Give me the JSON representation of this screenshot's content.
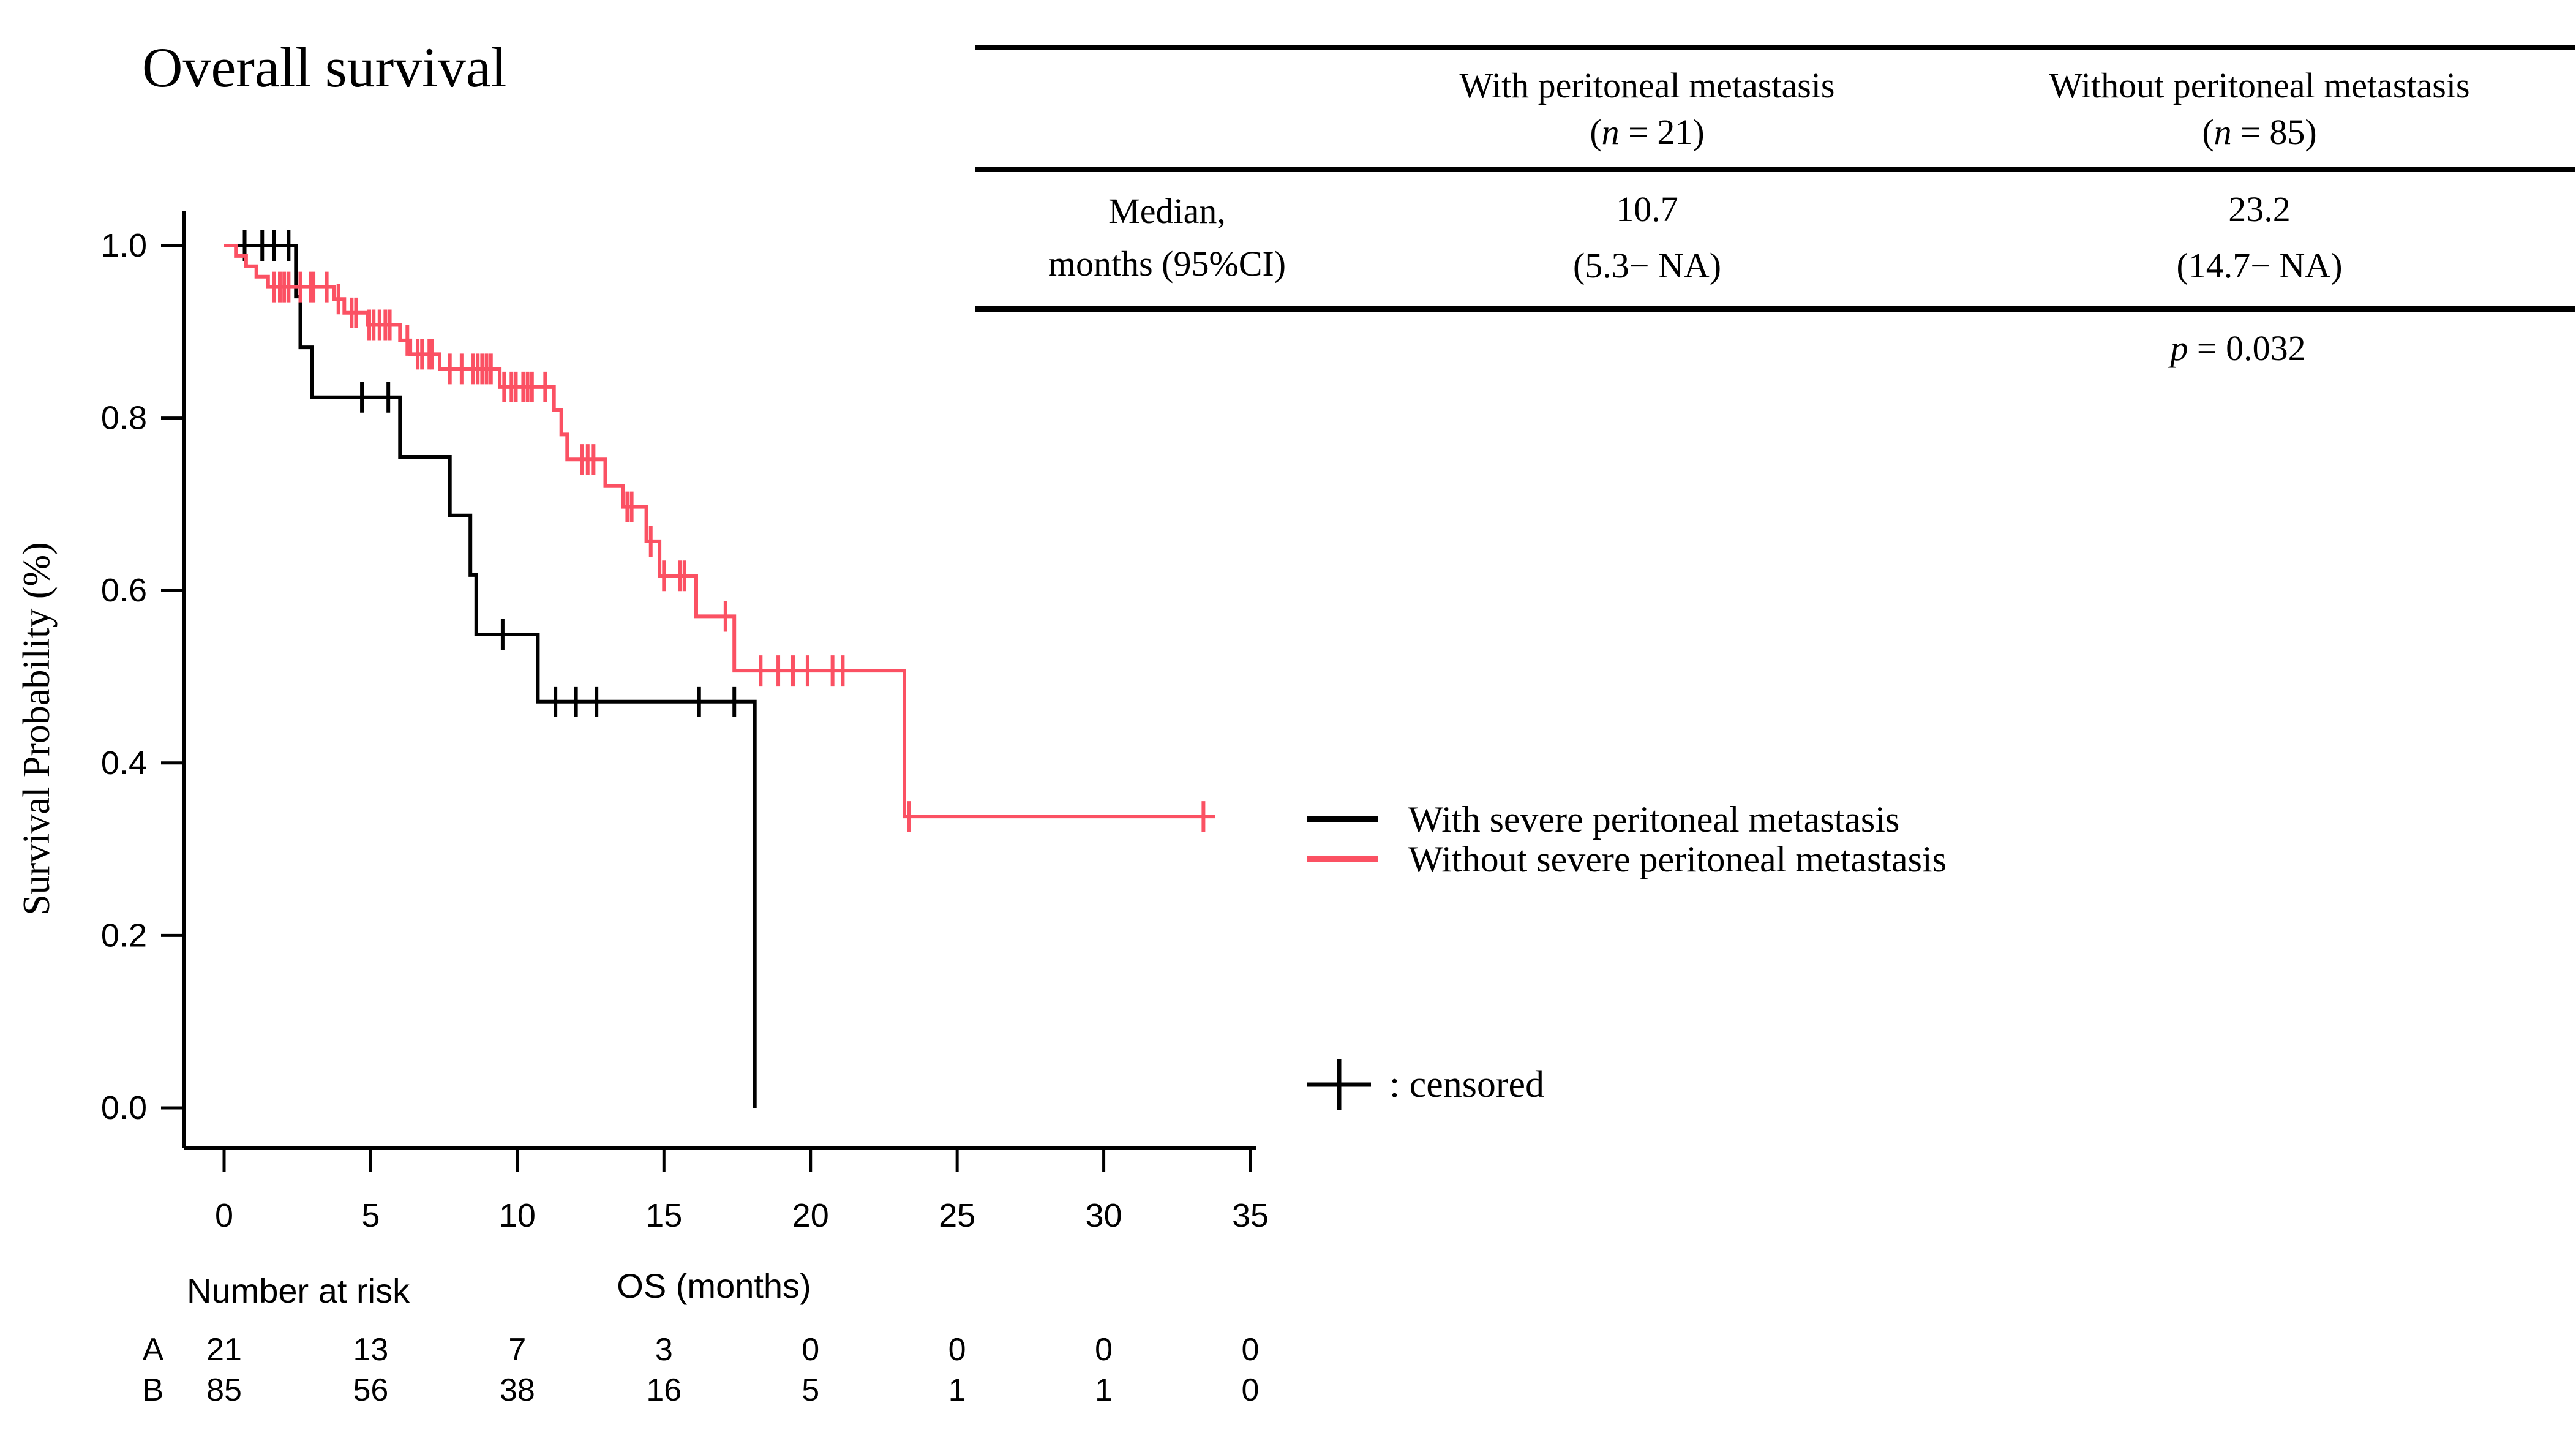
{
  "title": "Overall survival",
  "colors": {
    "group_a": "#000000",
    "group_b": "#fb5163",
    "text": "#000000",
    "background": "#ffffff"
  },
  "stats_table": {
    "columns": [
      {
        "title": "With peritoneal metastasis",
        "n_open": "(",
        "n_var": "n",
        "n_rest": " = 21)"
      },
      {
        "title": "Without peritoneal metastasis",
        "n_open": "(",
        "n_var": "n",
        "n_rest": " = 85)"
      }
    ],
    "row_label_line1": "Median,",
    "row_label_line2": "months (95%CI)",
    "values": [
      {
        "median": "10.7",
        "ci": "(5.3− NA)"
      },
      {
        "median": "23.2",
        "ci": "(14.7− NA)"
      }
    ],
    "p_var": "p",
    "p_rest": " = 0.032"
  },
  "legend": {
    "items": [
      {
        "label": "With severe peritoneal metastasis",
        "color": "#000000"
      },
      {
        "label": "Without severe peritoneal metastasis",
        "color": "#fb5163"
      }
    ]
  },
  "censored_note": {
    "text": ": censored"
  },
  "number_at_risk": {
    "header": "Number at risk",
    "times": [
      0,
      5,
      10,
      15,
      20,
      25,
      30,
      35
    ],
    "rows": [
      {
        "name": "A",
        "counts": [
          "21",
          "13",
          "7",
          "3",
          "0",
          "0",
          "0",
          "0"
        ]
      },
      {
        "name": "B",
        "counts": [
          "85",
          "56",
          "38",
          "16",
          "5",
          "1",
          "1",
          "0"
        ]
      }
    ]
  },
  "chart_data": {
    "type": "line",
    "subtype": "kaplan-meier-step",
    "title": "Overall survival",
    "xlabel": "OS (months)",
    "ylabel": "Survival Probability (%)",
    "xlim": [
      0,
      35
    ],
    "ylim": [
      0.0,
      1.0
    ],
    "xticks": [
      0,
      5,
      10,
      15,
      20,
      25,
      30,
      35
    ],
    "yticks": [
      {
        "label": "1.0",
        "value": 1.0
      },
      {
        "label": "0.8",
        "value": 0.8
      },
      {
        "label": "0.6",
        "value": 0.6
      },
      {
        "label": "0.4",
        "value": 0.4
      },
      {
        "label": "0.2",
        "value": 0.2
      },
      {
        "label": "0.0",
        "value": 0.0
      }
    ],
    "grid": false,
    "legend_position": "right-middle",
    "series": [
      {
        "name": "With severe peritoneal metastasis",
        "group": "A",
        "color": "#000000",
        "steps": [
          [
            0,
            1.0
          ],
          [
            2.45,
            0.941
          ],
          [
            2.6,
            0.882
          ],
          [
            3.0,
            0.824
          ],
          [
            6.0,
            0.755
          ],
          [
            7.7,
            0.687
          ],
          [
            8.4,
            0.618
          ],
          [
            8.6,
            0.549
          ],
          [
            10.7,
            0.471
          ],
          [
            18.1,
            0.0
          ]
        ],
        "end": 18.1,
        "censors": [
          [
            0.7,
            1.0
          ],
          [
            1.3,
            1.0
          ],
          [
            1.7,
            1.0
          ],
          [
            2.2,
            1.0
          ],
          [
            4.7,
            0.824
          ],
          [
            5.6,
            0.824
          ],
          [
            9.5,
            0.549
          ],
          [
            11.3,
            0.471
          ],
          [
            12.0,
            0.471
          ],
          [
            12.7,
            0.471
          ],
          [
            16.2,
            0.471
          ],
          [
            17.4,
            0.471
          ]
        ]
      },
      {
        "name": "Without severe peritoneal metastasis",
        "group": "B",
        "color": "#fb5163",
        "steps": [
          [
            0,
            1.0
          ],
          [
            0.4,
            0.988
          ],
          [
            0.75,
            0.976
          ],
          [
            1.1,
            0.964
          ],
          [
            1.5,
            0.952
          ],
          [
            3.75,
            0.938
          ],
          [
            4.1,
            0.922
          ],
          [
            4.9,
            0.908
          ],
          [
            6.0,
            0.89
          ],
          [
            6.35,
            0.874
          ],
          [
            7.35,
            0.857
          ],
          [
            9.4,
            0.836
          ],
          [
            11.25,
            0.809
          ],
          [
            11.5,
            0.781
          ],
          [
            11.7,
            0.752
          ],
          [
            13.0,
            0.721
          ],
          [
            13.6,
            0.697
          ],
          [
            14.4,
            0.657
          ],
          [
            14.85,
            0.617
          ],
          [
            16.1,
            0.57
          ],
          [
            17.4,
            0.507
          ],
          [
            23.2,
            0.338
          ]
        ],
        "end": 33.8,
        "censors": [
          [
            1.7,
            0.952
          ],
          [
            1.9,
            0.952
          ],
          [
            2.05,
            0.952
          ],
          [
            2.2,
            0.952
          ],
          [
            2.6,
            0.952
          ],
          [
            2.95,
            0.952
          ],
          [
            3.05,
            0.952
          ],
          [
            3.5,
            0.952
          ],
          [
            3.9,
            0.938
          ],
          [
            4.35,
            0.922
          ],
          [
            4.5,
            0.922
          ],
          [
            4.95,
            0.908
          ],
          [
            5.1,
            0.908
          ],
          [
            5.3,
            0.908
          ],
          [
            5.5,
            0.908
          ],
          [
            5.65,
            0.908
          ],
          [
            6.25,
            0.89
          ],
          [
            6.6,
            0.874
          ],
          [
            6.75,
            0.874
          ],
          [
            7.0,
            0.874
          ],
          [
            7.1,
            0.874
          ],
          [
            7.7,
            0.857
          ],
          [
            8.1,
            0.857
          ],
          [
            8.5,
            0.857
          ],
          [
            8.65,
            0.857
          ],
          [
            8.8,
            0.857
          ],
          [
            8.95,
            0.857
          ],
          [
            9.1,
            0.857
          ],
          [
            9.55,
            0.836
          ],
          [
            9.8,
            0.836
          ],
          [
            9.95,
            0.836
          ],
          [
            10.2,
            0.836
          ],
          [
            10.35,
            0.836
          ],
          [
            10.5,
            0.836
          ],
          [
            10.95,
            0.836
          ],
          [
            12.2,
            0.752
          ],
          [
            12.4,
            0.752
          ],
          [
            12.6,
            0.752
          ],
          [
            13.75,
            0.697
          ],
          [
            13.9,
            0.697
          ],
          [
            14.55,
            0.657
          ],
          [
            15.0,
            0.617
          ],
          [
            15.55,
            0.617
          ],
          [
            15.7,
            0.617
          ],
          [
            17.1,
            0.57
          ],
          [
            18.3,
            0.507
          ],
          [
            18.9,
            0.507
          ],
          [
            19.4,
            0.507
          ],
          [
            19.9,
            0.507
          ],
          [
            20.75,
            0.507
          ],
          [
            21.1,
            0.507
          ],
          [
            23.35,
            0.338
          ],
          [
            33.4,
            0.338
          ]
        ]
      }
    ]
  }
}
